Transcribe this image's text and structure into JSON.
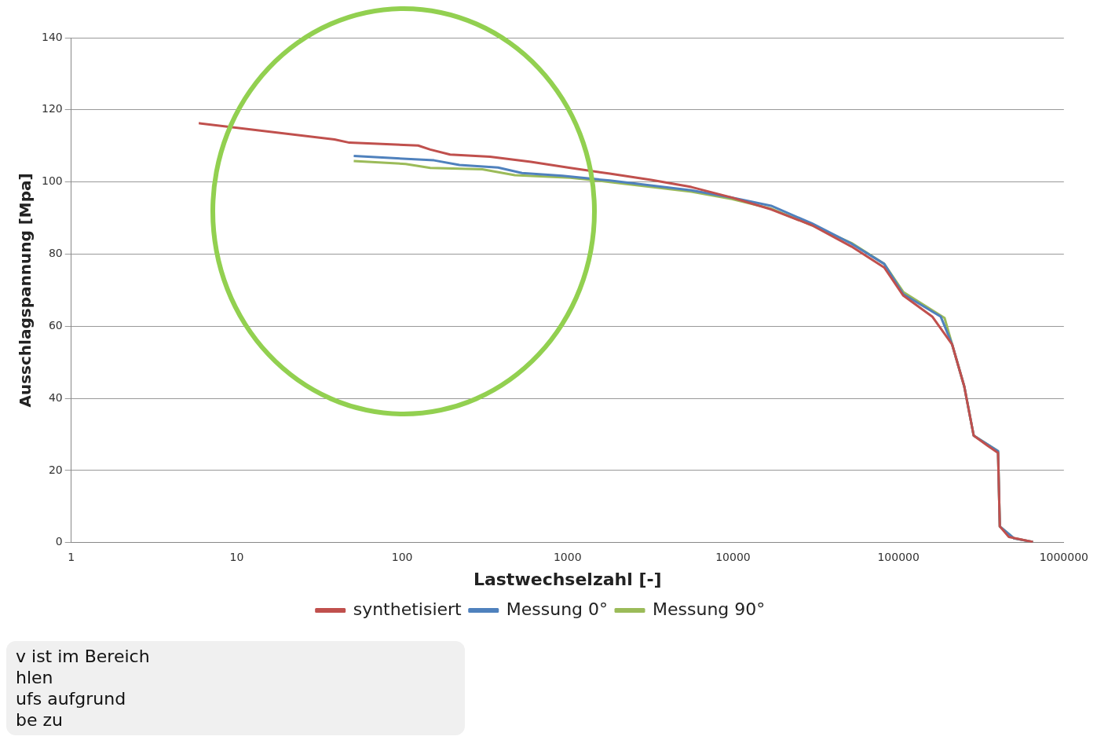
{
  "chart_data": {
    "type": "line",
    "xlabel": "Lastwechselzahl [-]",
    "ylabel": "Ausschlagspannung [Mpa]",
    "log": "x",
    "xlim": [
      1,
      1000000
    ],
    "xticks": [
      1,
      10,
      100,
      1000,
      10000,
      100000,
      1000000
    ],
    "ylim": [
      0,
      140
    ],
    "yticks": [
      0,
      20,
      40,
      60,
      80,
      100,
      120,
      140
    ],
    "grid": "y",
    "legend": "bottom",
    "marker": "none",
    "line_style": "solid",
    "annotations": [
      "v ist im Bereich",
      "hlen",
      "ufs aufgrund",
      "be zu"
    ],
    "series": [
      {
        "name": "synthetisiert",
        "color": "#c0504d",
        "x": [
          5.9,
          39,
          48,
          125,
          148,
          195,
          340,
          600,
          1040,
          1800,
          3200,
          5600,
          9800,
          17000,
          30000,
          52000,
          82000,
          107000,
          160000,
          211000,
          250000,
          285000,
          348000,
          400000,
          410000,
          465000,
          650000
        ],
        "values": [
          116.3,
          111.8,
          110.9,
          110.1,
          109,
          107.6,
          107,
          105.6,
          103.9,
          102.3,
          100.6,
          98.6,
          95.7,
          92.4,
          88,
          82.1,
          76.3,
          68.5,
          62.7,
          55,
          43.3,
          29.7,
          26.8,
          24.9,
          4.5,
          1.6,
          0.2
        ]
      },
      {
        "name": "Messung 0°",
        "color": "#4f81bd",
        "x": [
          51,
          156,
          222,
          380,
          530,
          930,
          1800,
          5600,
          9800,
          17000,
          30000,
          52000,
          82000,
          107000,
          180000,
          211000,
          250000,
          285000,
          400000,
          410000,
          500000,
          650000
        ],
        "values": [
          107.2,
          106,
          104.7,
          104,
          102.5,
          101.7,
          100.4,
          97.7,
          95.7,
          93.4,
          88.5,
          82.9,
          77.3,
          68.9,
          62.7,
          55,
          43.3,
          29.7,
          25.4,
          4.5,
          1.2,
          0.2
        ]
      },
      {
        "name": "Messung 90°",
        "color": "#9bbb59",
        "x": [
          51,
          105,
          148,
          305,
          480,
          1040,
          1800,
          5600,
          9800,
          17000,
          30000,
          52000,
          82000,
          107000,
          190000,
          211000,
          250000,
          285000,
          400000,
          410000,
          500000,
          650000
        ],
        "values": [
          105.8,
          105,
          103.9,
          103.5,
          101.9,
          101.2,
          100,
          97.3,
          95.3,
          92.6,
          88,
          83.1,
          77.3,
          69.5,
          62.3,
          55,
          43.3,
          29.7,
          25.4,
          4.5,
          1.2,
          0.2
        ]
      }
    ]
  }
}
